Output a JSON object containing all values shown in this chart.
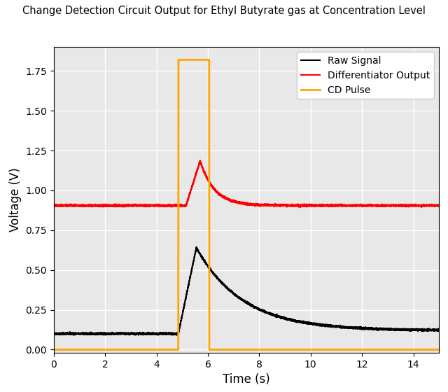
{
  "title": "Change Detection Circuit Output for Ethyl Butyrate gas at Concentration Level",
  "xlabel": "Time (s)",
  "ylabel": "Voltage (V)",
  "xlim": [
    0,
    15
  ],
  "ylim": [
    -0.02,
    1.9
  ],
  "yticks": [
    0.0,
    0.25,
    0.5,
    0.75,
    1.0,
    1.25,
    1.5,
    1.75
  ],
  "xticks": [
    0,
    2,
    4,
    6,
    8,
    10,
    12,
    14
  ],
  "raw_signal_color": "black",
  "diff_output_color": "red",
  "cd_pulse_color": "orange",
  "legend_labels": [
    "Raw Signal",
    "Differentiator Output",
    "CD Pulse"
  ],
  "raw_baseline_before": 0.1,
  "raw_peak": 0.64,
  "raw_baseline_after": 0.12,
  "diff_baseline": 0.905,
  "diff_peak": 1.185,
  "cd_pulse_start": 4.85,
  "cd_pulse_end": 6.05,
  "cd_pulse_high": 1.82,
  "gas_onset": 4.85,
  "peak_time": 5.55,
  "time_total": 15.0,
  "background_color": "#e8e8e8"
}
